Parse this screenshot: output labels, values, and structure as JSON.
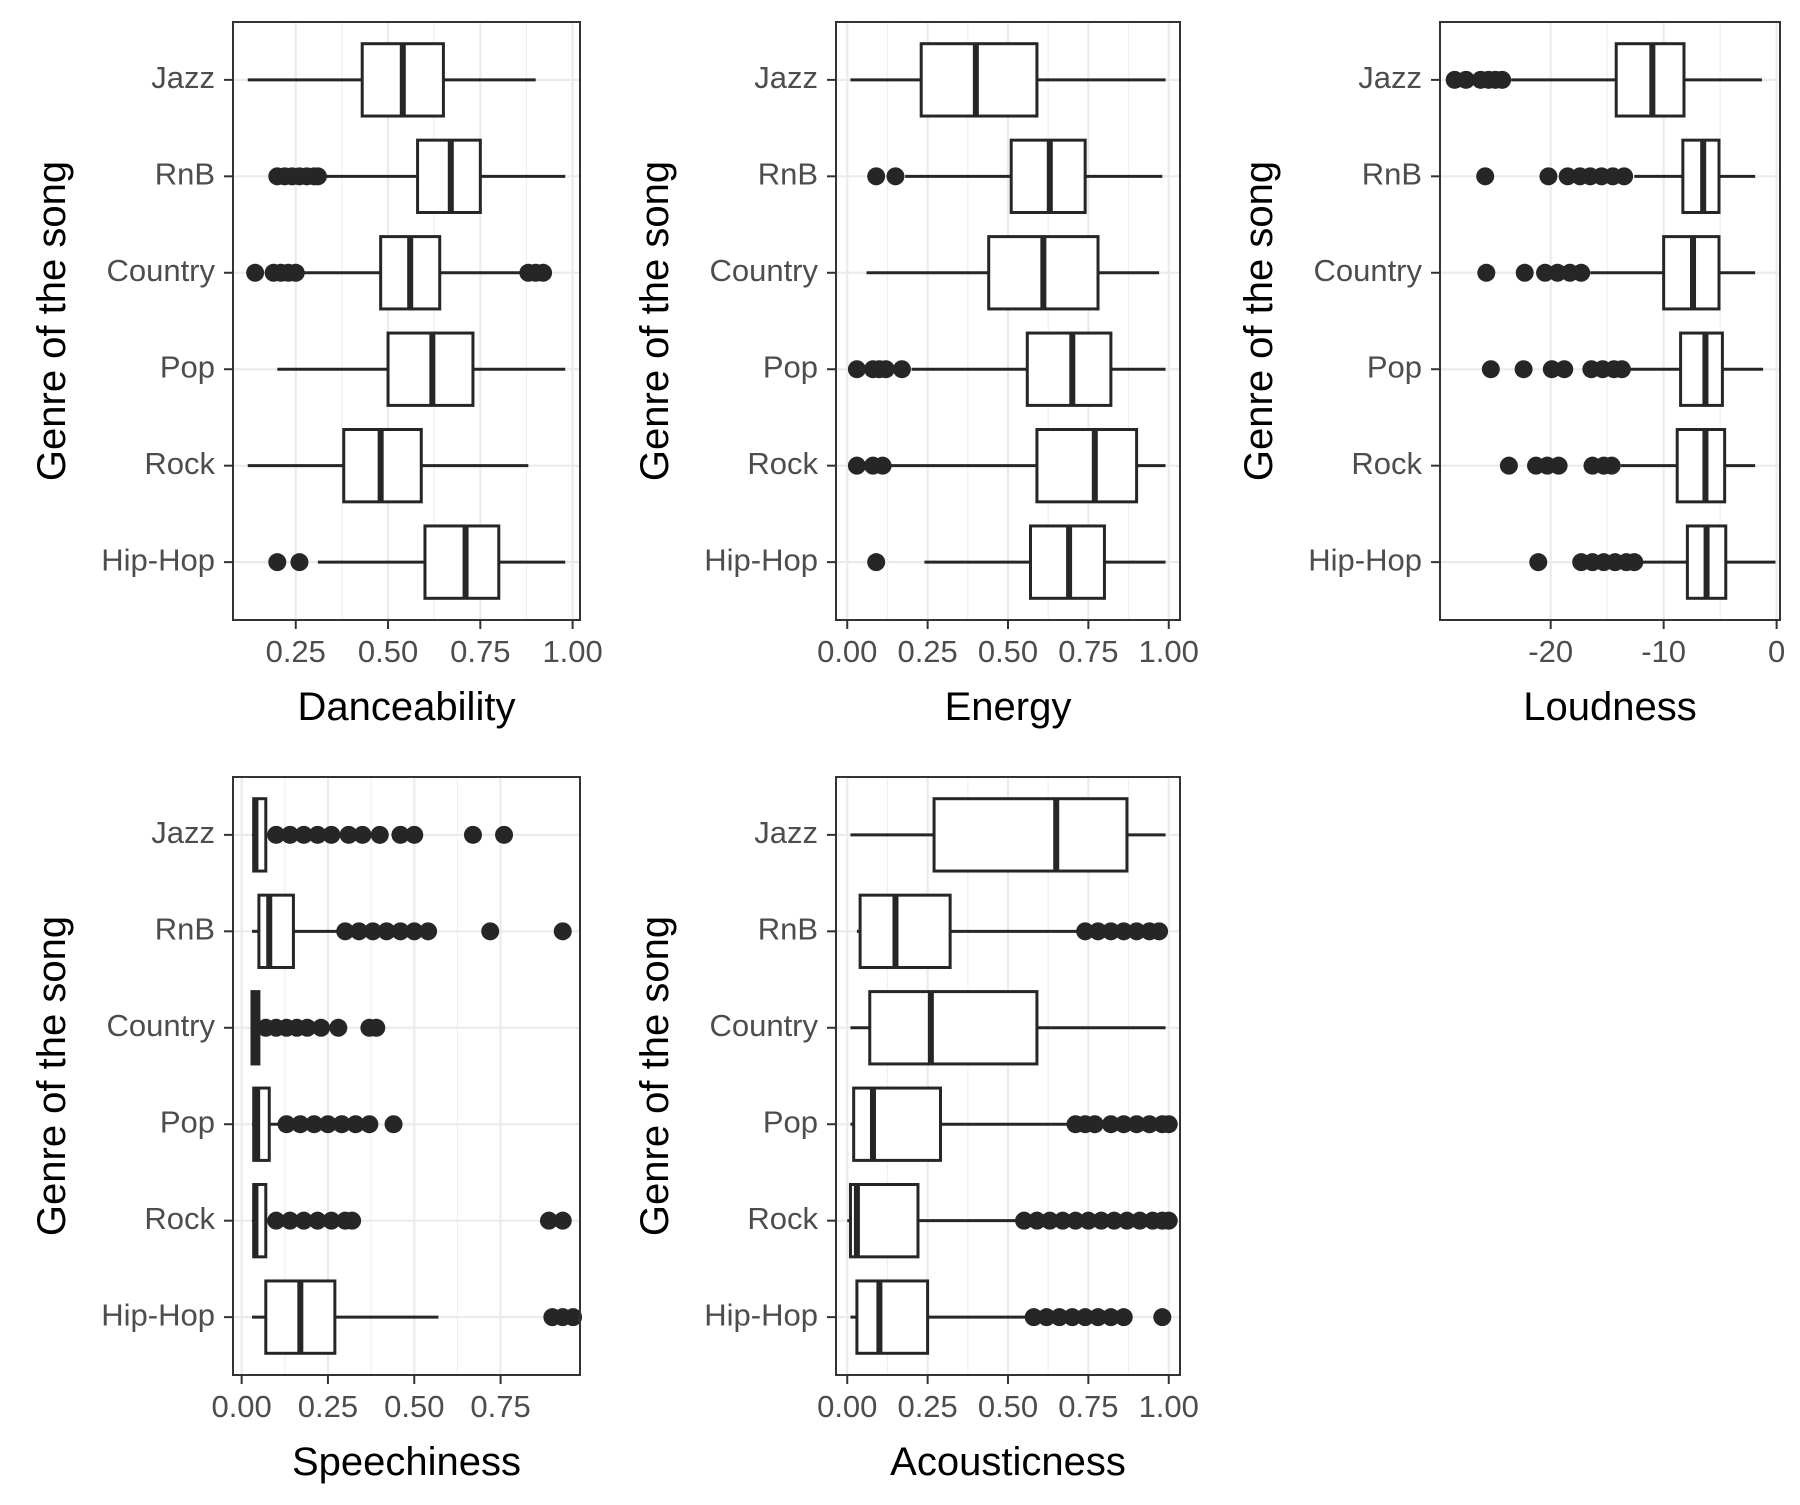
{
  "chart_data": [
    {
      "type": "boxplot",
      "orientation": "horizontal",
      "xlabel": "Danceability",
      "ylabel": "Genre of the song",
      "xlim": [
        0.08,
        1.02
      ],
      "xticks": [
        0.25,
        0.5,
        0.75,
        1.0
      ],
      "xtick_labels": [
        "0.25",
        "0.50",
        "0.75",
        "1.00"
      ],
      "grid": true,
      "categories": [
        "Jazz",
        "RnB",
        "Country",
        "Pop",
        "Rock",
        "Hip-Hop"
      ],
      "boxes": [
        {
          "category": "Jazz",
          "whisker_low": 0.12,
          "q1": 0.43,
          "median": 0.54,
          "q3": 0.65,
          "whisker_high": 0.9,
          "outliers": []
        },
        {
          "category": "RnB",
          "whisker_low": 0.32,
          "q1": 0.58,
          "median": 0.67,
          "q3": 0.75,
          "whisker_high": 0.98,
          "outliers": [
            0.2,
            0.22,
            0.24,
            0.26,
            0.28,
            0.3,
            0.31
          ]
        },
        {
          "category": "Country",
          "whisker_low": 0.26,
          "q1": 0.48,
          "median": 0.56,
          "q3": 0.64,
          "whisker_high": 0.86,
          "outliers": [
            0.14,
            0.19,
            0.21,
            0.23,
            0.25,
            0.88,
            0.9,
            0.92
          ]
        },
        {
          "category": "Pop",
          "whisker_low": 0.2,
          "q1": 0.5,
          "median": 0.62,
          "q3": 0.73,
          "whisker_high": 0.98,
          "outliers": []
        },
        {
          "category": "Rock",
          "whisker_low": 0.12,
          "q1": 0.38,
          "median": 0.48,
          "q3": 0.59,
          "whisker_high": 0.88,
          "outliers": []
        },
        {
          "category": "Hip-Hop",
          "whisker_low": 0.31,
          "q1": 0.6,
          "median": 0.71,
          "q3": 0.8,
          "whisker_high": 0.98,
          "outliers": [
            0.2,
            0.26
          ]
        }
      ]
    },
    {
      "type": "boxplot",
      "orientation": "horizontal",
      "xlabel": "Energy",
      "ylabel": "Genre of the song",
      "xlim": [
        -0.035,
        1.035
      ],
      "xticks": [
        0.0,
        0.25,
        0.5,
        0.75,
        1.0
      ],
      "xtick_labels": [
        "0.00",
        "0.25",
        "0.50",
        "0.75",
        "1.00"
      ],
      "grid": true,
      "categories": [
        "Jazz",
        "RnB",
        "Country",
        "Pop",
        "Rock",
        "Hip-Hop"
      ],
      "boxes": [
        {
          "category": "Jazz",
          "whisker_low": 0.01,
          "q1": 0.23,
          "median": 0.4,
          "q3": 0.59,
          "whisker_high": 0.99,
          "outliers": []
        },
        {
          "category": "RnB",
          "whisker_low": 0.18,
          "q1": 0.51,
          "median": 0.63,
          "q3": 0.74,
          "whisker_high": 0.98,
          "outliers": [
            0.09,
            0.15
          ]
        },
        {
          "category": "Country",
          "whisker_low": 0.06,
          "q1": 0.44,
          "median": 0.61,
          "q3": 0.78,
          "whisker_high": 0.97,
          "outliers": []
        },
        {
          "category": "Pop",
          "whisker_low": 0.2,
          "q1": 0.56,
          "median": 0.7,
          "q3": 0.82,
          "whisker_high": 0.99,
          "outliers": [
            0.03,
            0.08,
            0.1,
            0.12,
            0.17
          ]
        },
        {
          "category": "Rock",
          "whisker_low": 0.13,
          "q1": 0.59,
          "median": 0.77,
          "q3": 0.9,
          "whisker_high": 0.99,
          "outliers": [
            0.03,
            0.08,
            0.11
          ]
        },
        {
          "category": "Hip-Hop",
          "whisker_low": 0.24,
          "q1": 0.57,
          "median": 0.69,
          "q3": 0.8,
          "whisker_high": 0.99,
          "outliers": [
            0.09
          ]
        }
      ]
    },
    {
      "type": "boxplot",
      "orientation": "horizontal",
      "xlabel": "Loudness",
      "ylabel": "Genre of the song",
      "xlim": [
        -29.8,
        0.3
      ],
      "xticks": [
        -20,
        -10,
        0
      ],
      "xtick_labels": [
        "-20",
        "-10",
        "0"
      ],
      "grid": true,
      "categories": [
        "Jazz",
        "RnB",
        "Country",
        "Pop",
        "Rock",
        "Hip-Hop"
      ],
      "boxes": [
        {
          "category": "Jazz",
          "whisker_low": -23.5,
          "q1": -14.2,
          "median": -11.0,
          "q3": -8.2,
          "whisker_high": -1.3,
          "outliers": [
            -28.5,
            -27.5,
            -26.2,
            -25.5,
            -24.9,
            -24.3
          ]
        },
        {
          "category": "RnB",
          "whisker_low": -12.6,
          "q1": -8.3,
          "median": -6.5,
          "q3": -5.1,
          "whisker_high": -1.9,
          "outliers": [
            -25.8,
            -20.2,
            -18.5,
            -17.4,
            -16.5,
            -15.5,
            -14.5,
            -13.5
          ]
        },
        {
          "category": "Country",
          "whisker_low": -16.5,
          "q1": -10.0,
          "median": -7.4,
          "q3": -5.1,
          "whisker_high": -1.9,
          "outliers": [
            -25.7,
            -22.3,
            -20.5,
            -19.4,
            -18.3,
            -17.3
          ]
        },
        {
          "category": "Pop",
          "whisker_low": -13.0,
          "q1": -8.5,
          "median": -6.3,
          "q3": -4.8,
          "whisker_high": -1.2,
          "outliers": [
            -25.3,
            -22.4,
            -19.9,
            -18.8,
            -16.4,
            -15.4,
            -14.4,
            -13.7
          ]
        },
        {
          "category": "Rock",
          "whisker_low": -13.8,
          "q1": -8.8,
          "median": -6.3,
          "q3": -4.6,
          "whisker_high": -1.9,
          "outliers": [
            -23.7,
            -21.3,
            -20.3,
            -19.3,
            -16.3,
            -15.3,
            -14.6
          ]
        },
        {
          "category": "Hip-Hop",
          "whisker_low": -12.0,
          "q1": -7.9,
          "median": -6.2,
          "q3": -4.5,
          "whisker_high": -0.1,
          "outliers": [
            -21.1,
            -17.3,
            -16.3,
            -15.3,
            -14.3,
            -13.3,
            -12.6
          ]
        }
      ]
    },
    {
      "type": "boxplot",
      "orientation": "horizontal",
      "xlabel": "Speechiness",
      "ylabel": "Genre of the song",
      "xlim": [
        -0.025,
        0.98
      ],
      "xticks": [
        0.0,
        0.25,
        0.5,
        0.75
      ],
      "xtick_labels": [
        "0.00",
        "0.25",
        "0.50",
        "0.75"
      ],
      "grid": true,
      "categories": [
        "Jazz",
        "RnB",
        "Country",
        "Pop",
        "Rock",
        "Hip-Hop"
      ],
      "boxes": [
        {
          "category": "Jazz",
          "whisker_low": 0.03,
          "q1": 0.035,
          "median": 0.04,
          "q3": 0.07,
          "whisker_high": 0.09,
          "outliers": [
            0.1,
            0.14,
            0.18,
            0.22,
            0.26,
            0.31,
            0.35,
            0.4,
            0.46,
            0.5,
            0.67,
            0.76
          ]
        },
        {
          "category": "RnB",
          "whisker_low": 0.03,
          "q1": 0.05,
          "median": 0.08,
          "q3": 0.15,
          "whisker_high": 0.28,
          "outliers": [
            0.3,
            0.34,
            0.38,
            0.42,
            0.46,
            0.5,
            0.54,
            0.72,
            0.93
          ]
        },
        {
          "category": "Country",
          "whisker_low": 0.03,
          "q1": 0.03,
          "median": 0.04,
          "q3": 0.05,
          "whisker_high": 0.06,
          "outliers": [
            0.07,
            0.1,
            0.13,
            0.16,
            0.19,
            0.23,
            0.28,
            0.37,
            0.39
          ]
        },
        {
          "category": "Pop",
          "whisker_low": 0.03,
          "q1": 0.035,
          "median": 0.045,
          "q3": 0.08,
          "whisker_high": 0.12,
          "outliers": [
            0.13,
            0.17,
            0.21,
            0.25,
            0.29,
            0.33,
            0.37,
            0.44
          ]
        },
        {
          "category": "Rock",
          "whisker_low": 0.03,
          "q1": 0.035,
          "median": 0.04,
          "q3": 0.07,
          "whisker_high": 0.09,
          "outliers": [
            0.1,
            0.14,
            0.18,
            0.22,
            0.26,
            0.3,
            0.32,
            0.89,
            0.93
          ]
        },
        {
          "category": "Hip-Hop",
          "whisker_low": 0.03,
          "q1": 0.07,
          "median": 0.17,
          "q3": 0.27,
          "whisker_high": 0.57,
          "outliers": [
            0.9,
            0.93,
            0.96
          ]
        }
      ]
    },
    {
      "type": "boxplot",
      "orientation": "horizontal",
      "xlabel": "Acousticness",
      "ylabel": "Genre of the song",
      "xlim": [
        -0.035,
        1.035
      ],
      "xticks": [
        0.0,
        0.25,
        0.5,
        0.75,
        1.0
      ],
      "xtick_labels": [
        "0.00",
        "0.25",
        "0.50",
        "0.75",
        "1.00"
      ],
      "grid": true,
      "categories": [
        "Jazz",
        "RnB",
        "Country",
        "Pop",
        "Rock",
        "Hip-Hop"
      ],
      "boxes": [
        {
          "category": "Jazz",
          "whisker_low": 0.01,
          "q1": 0.27,
          "median": 0.65,
          "q3": 0.87,
          "whisker_high": 0.99,
          "outliers": []
        },
        {
          "category": "RnB",
          "whisker_low": 0.03,
          "q1": 0.04,
          "median": 0.15,
          "q3": 0.32,
          "whisker_high": 0.72,
          "outliers": [
            0.74,
            0.78,
            0.82,
            0.86,
            0.9,
            0.94,
            0.97
          ]
        },
        {
          "category": "Country",
          "whisker_low": 0.01,
          "q1": 0.07,
          "median": 0.26,
          "q3": 0.59,
          "whisker_high": 0.99,
          "outliers": []
        },
        {
          "category": "Pop",
          "whisker_low": 0.01,
          "q1": 0.02,
          "median": 0.08,
          "q3": 0.29,
          "whisker_high": 0.69,
          "outliers": [
            0.71,
            0.74,
            0.77,
            0.82,
            0.86,
            0.9,
            0.94,
            0.98,
            1.0
          ]
        },
        {
          "category": "Rock",
          "whisker_low": 0.0,
          "q1": 0.01,
          "median": 0.03,
          "q3": 0.22,
          "whisker_high": 0.53,
          "outliers": [
            0.55,
            0.59,
            0.63,
            0.67,
            0.71,
            0.75,
            0.79,
            0.83,
            0.87,
            0.91,
            0.95,
            0.98,
            1.0
          ]
        },
        {
          "category": "Hip-Hop",
          "whisker_low": 0.01,
          "q1": 0.03,
          "median": 0.1,
          "q3": 0.25,
          "whisker_high": 0.56,
          "outliers": [
            0.58,
            0.62,
            0.66,
            0.7,
            0.74,
            0.78,
            0.82,
            0.86,
            0.98
          ]
        }
      ]
    }
  ]
}
